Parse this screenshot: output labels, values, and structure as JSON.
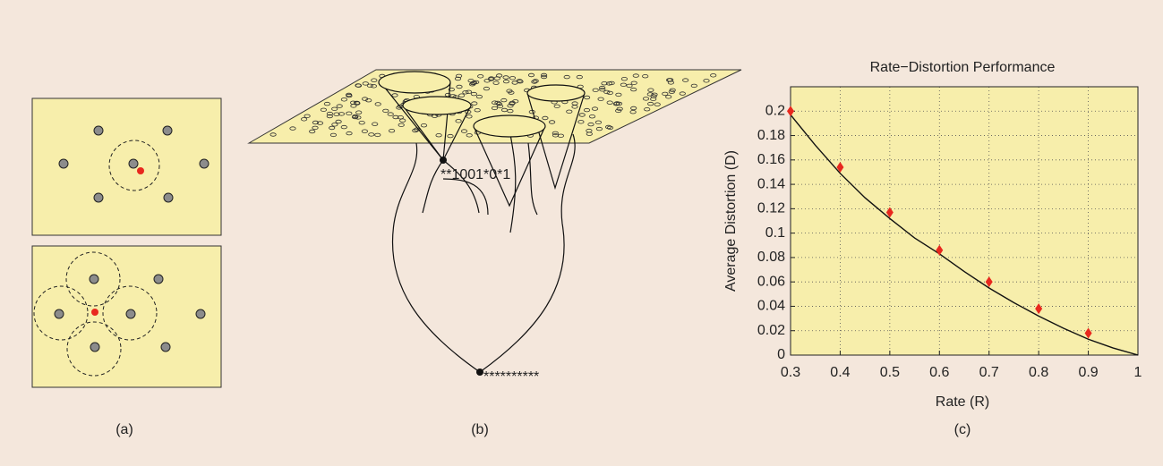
{
  "panel_a": {
    "caption": "(a)"
  },
  "panel_b": {
    "caption": "(b)",
    "labels": [
      "**1001*0*1",
      "**********"
    ]
  },
  "chart_data": {
    "type": "line",
    "title": "Rate−Distortion Performance",
    "x_label": "Rate (R)",
    "y_label": "Average Distortion (D)",
    "caption": "(c)",
    "xlim": [
      0.3,
      1
    ],
    "xticks": [
      0.3,
      0.4,
      0.5,
      0.6,
      0.7,
      0.8,
      0.9,
      1
    ],
    "ylim": [
      0,
      0.22
    ],
    "yticks": [
      0,
      0.02,
      0.04,
      0.06,
      0.08,
      0.1,
      0.12,
      0.14,
      0.16,
      0.18,
      0.2
    ],
    "grid": true,
    "background": "#f7eeab",
    "series": [
      {
        "type": "line",
        "color": "#111111",
        "x": [
          0.3,
          0.35,
          0.4,
          0.45,
          0.5,
          0.55,
          0.6,
          0.65,
          0.7,
          0.75,
          0.8,
          0.85,
          0.9,
          0.95,
          1
        ],
        "values": [
          0.197,
          0.172,
          0.149,
          0.129,
          0.112,
          0.096,
          0.083,
          0.0685,
          0.055,
          0.043,
          0.032,
          0.022,
          0.013,
          0.0058,
          0
        ]
      },
      {
        "type": "scatter",
        "color": "#e8281e",
        "x": [
          0.3,
          0.4,
          0.5,
          0.6,
          0.7,
          0.8,
          0.9
        ],
        "values": [
          0.2,
          0.154,
          0.117,
          0.086,
          0.06,
          0.038,
          0.018
        ]
      }
    ]
  }
}
